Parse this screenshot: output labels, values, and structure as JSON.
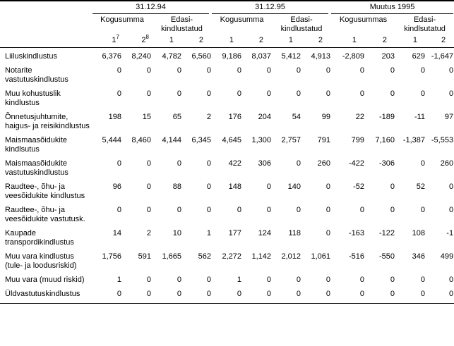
{
  "table": {
    "groups": [
      {
        "title": "31.12.94",
        "subs": [
          "Kogusumma",
          "Edasi-kindlustatud"
        ]
      },
      {
        "title": "31.12.95",
        "subs": [
          "Kogusumma",
          "Edasi-kindlustatud"
        ]
      },
      {
        "title": "Muutus 1995",
        "subs": [
          "Kogusummas",
          "Edasi-kindlsutatud"
        ]
      }
    ],
    "column_numbers": [
      {
        "n": "1",
        "sup": "7"
      },
      {
        "n": "2",
        "sup": "8"
      },
      {
        "n": "1"
      },
      {
        "n": "2"
      },
      {
        "n": "1"
      },
      {
        "n": "2"
      },
      {
        "n": "1"
      },
      {
        "n": "2"
      },
      {
        "n": "1"
      },
      {
        "n": "2"
      },
      {
        "n": "1"
      },
      {
        "n": "2"
      }
    ],
    "rows": [
      {
        "label": "Liiluskindlustus",
        "values": [
          "6,376",
          "8,240",
          "4,782",
          "6,560",
          "9,186",
          "8,037",
          "5,412",
          "4,913",
          "-2,809",
          "203",
          "629",
          "-1,647"
        ]
      },
      {
        "label": "Notarite vastutuskindlustus",
        "values": [
          "0",
          "0",
          "0",
          "0",
          "0",
          "0",
          "0",
          "0",
          "0",
          "0",
          "0",
          "0"
        ]
      },
      {
        "label": "Muu kohustuslik kindlustus",
        "values": [
          "0",
          "0",
          "0",
          "0",
          "0",
          "0",
          "0",
          "0",
          "0",
          "0",
          "0",
          "0"
        ]
      },
      {
        "label": "Õnnetusjuhtumite, haigus- ja reisikindlustus",
        "values": [
          "198",
          "15",
          "65",
          "2",
          "176",
          "204",
          "54",
          "99",
          "22",
          "-189",
          "-11",
          "97"
        ]
      },
      {
        "label": "Maismaasõidukite kindlsutus",
        "values": [
          "5,444",
          "8,460",
          "4,144",
          "6,345",
          "4,645",
          "1,300",
          "2,757",
          "791",
          "799",
          "7,160",
          "-1,387",
          "-5,553"
        ]
      },
      {
        "label": "Maismaasõidukite vastutuskindlustus",
        "values": [
          "0",
          "0",
          "0",
          "0",
          "422",
          "306",
          "0",
          "260",
          "-422",
          "-306",
          "0",
          "260"
        ]
      },
      {
        "label": "Raudtee-, õhu- ja veesõidukite kindlustus",
        "values": [
          "96",
          "0",
          "88",
          "0",
          "148",
          "0",
          "140",
          "0",
          "-52",
          "0",
          "52",
          "0"
        ]
      },
      {
        "label": "Raudtee-, õhu- ja veesõidukite vastutusk.",
        "values": [
          "0",
          "0",
          "0",
          "0",
          "0",
          "0",
          "0",
          "0",
          "0",
          "0",
          "0",
          "0"
        ]
      },
      {
        "label": "Kaupade transpordikindlustus",
        "values": [
          "14",
          "2",
          "10",
          "1",
          "177",
          "124",
          "118",
          "0",
          "-163",
          "-122",
          "108",
          "-1"
        ]
      },
      {
        "label": "Muu vara kindlustus (tule- ja loodusriskid)",
        "values": [
          "1,756",
          "591",
          "1,665",
          "562",
          "2,272",
          "1,142",
          "2,012",
          "1,061",
          "-516",
          "-550",
          "346",
          "499"
        ]
      },
      {
        "label": "Muu vara (muud riskid)",
        "values": [
          "1",
          "0",
          "0",
          "0",
          "1",
          "0",
          "0",
          "0",
          "0",
          "0",
          "0",
          "0"
        ]
      },
      {
        "label": "Üldvastutuskindlustus",
        "values": [
          "0",
          "0",
          "0",
          "0",
          "0",
          "0",
          "0",
          "0",
          "0",
          "0",
          "0",
          "0"
        ]
      }
    ]
  }
}
